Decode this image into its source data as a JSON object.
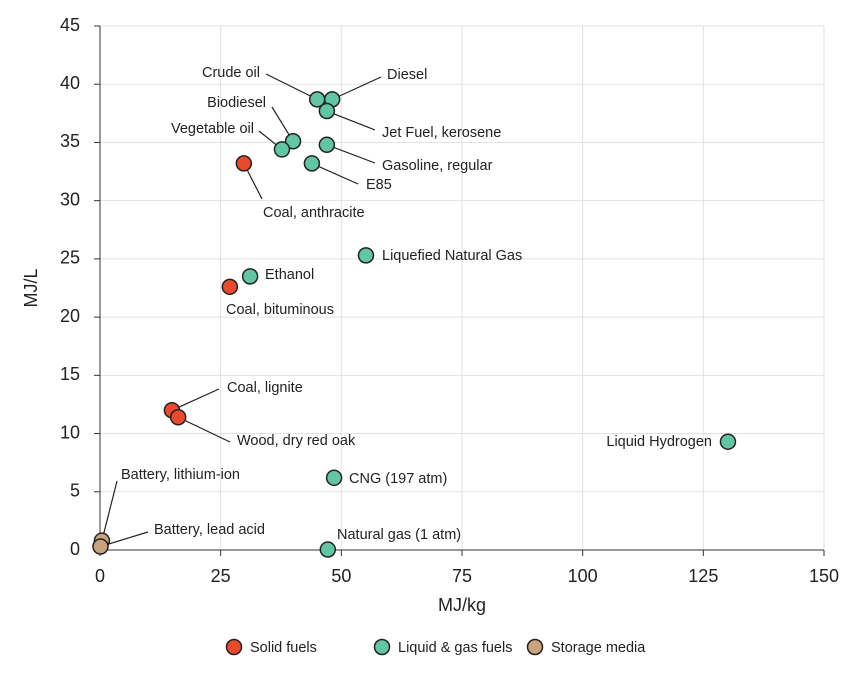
{
  "chart_data": {
    "type": "scatter",
    "xlabel": "MJ/kg",
    "ylabel": "MJ/L",
    "xlim": [
      0,
      150
    ],
    "ylim": [
      0,
      45
    ],
    "xticks": [
      0,
      25,
      50,
      75,
      100,
      125,
      150
    ],
    "yticks": [
      0,
      5,
      10,
      15,
      20,
      25,
      30,
      35,
      40,
      45
    ],
    "grid": true,
    "legend": "bottom",
    "series": [
      {
        "name": "Solid fuels",
        "color": "#ea4a2c",
        "labels": [
          "Coal, anthracite",
          "Coal, bituminous",
          "Coal, lignite",
          "Wood, dry red oak"
        ],
        "x": [
          29.8,
          26.9,
          14.9,
          16.2
        ],
        "values": [
          33.2,
          22.6,
          12.0,
          11.4
        ]
      },
      {
        "name": "Liquid & gas fuels",
        "color": "#62c6a6",
        "labels": [
          "Crude oil",
          "Diesel",
          "Jet Fuel, kerosene",
          "Biodiesel",
          "Vegetable oil",
          "Gasoline, regular",
          "E85",
          "Liquefied Natural Gas",
          "Ethanol",
          "Liquid Hydrogen",
          "CNG (197 atm)",
          "Natural gas (1 atm)"
        ],
        "x": [
          45.0,
          48.1,
          47.0,
          40.0,
          37.7,
          47.0,
          43.9,
          55.1,
          31.1,
          130.1,
          48.5,
          47.2
        ],
        "values": [
          38.7,
          38.7,
          37.7,
          35.1,
          34.4,
          34.8,
          33.2,
          25.3,
          23.5,
          9.3,
          6.2,
          0.04
        ]
      },
      {
        "name": "Storage media",
        "color": "#c9a37c",
        "labels": [
          "Battery, lithium-ion",
          "Battery, lead acid"
        ],
        "x": [
          0.4,
          0.1
        ],
        "values": [
          0.8,
          0.3
        ]
      }
    ]
  }
}
